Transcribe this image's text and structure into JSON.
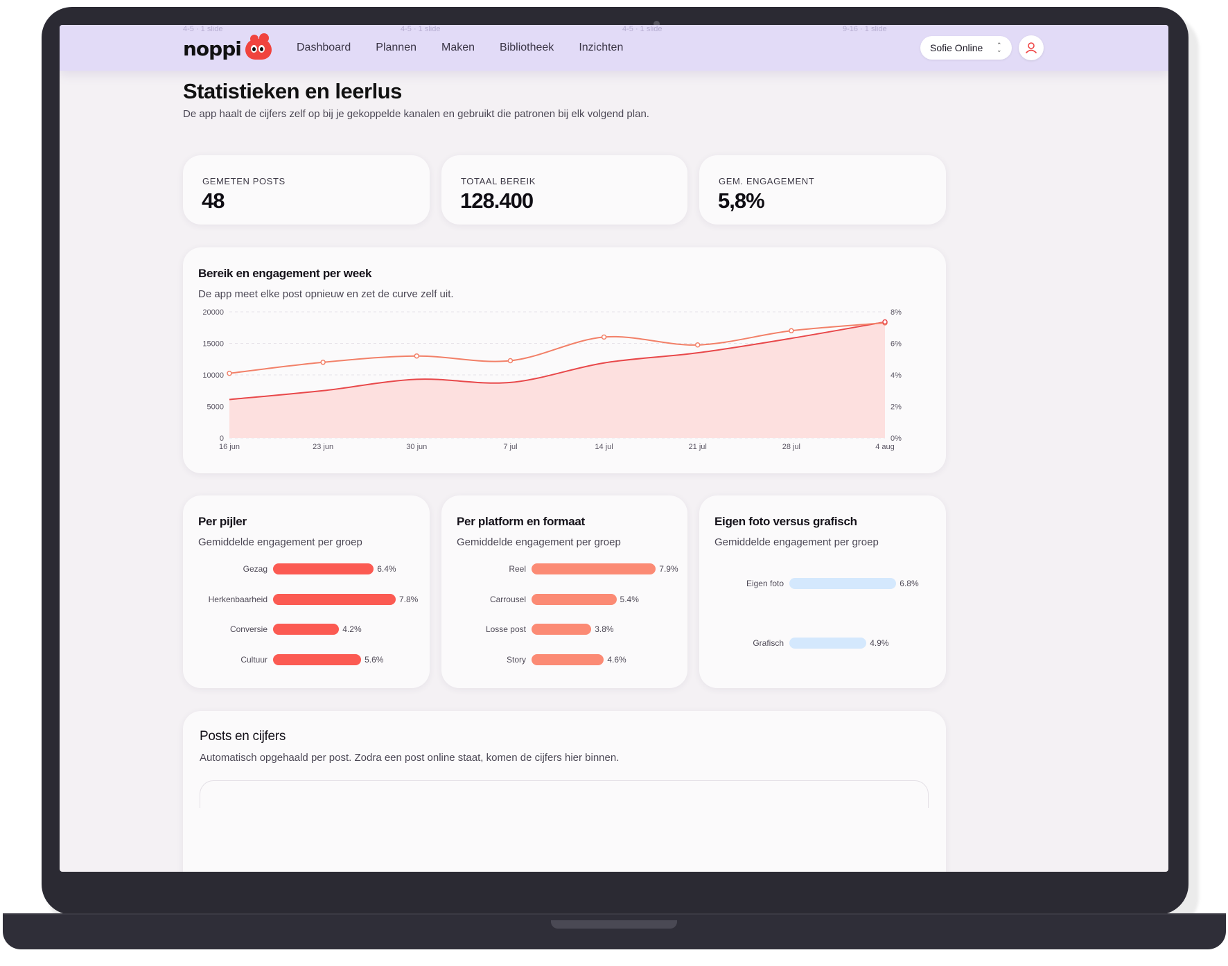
{
  "nav": {
    "ghost_items": [
      "4-5 · 1 slide",
      "4-5 · 1 slide",
      "4-5 · 1 slide",
      "9-16 · 1 slide"
    ],
    "logo": "noppi",
    "links": [
      "Dashboard",
      "Plannen",
      "Maken",
      "Bibliotheek",
      "Inzichten"
    ],
    "account": "Sofie Online"
  },
  "header": {
    "title": "Statistieken en leerlus",
    "subtitle": "De app haalt de cijfers zelf op bij je gekoppelde kanalen en gebruikt die patronen bij elk volgend plan."
  },
  "stats": [
    {
      "label": "GEMETEN POSTS",
      "value": "48"
    },
    {
      "label": "TOTAAL BEREIK",
      "value": "128.400"
    },
    {
      "label": "GEM. ENGAGEMENT",
      "value": "5,8%"
    }
  ],
  "weekly": {
    "title": "Bereik en engagement per week",
    "subtitle": "De app meet elke post opnieuw en zet de curve zelf uit."
  },
  "chart_data": [
    {
      "type": "area",
      "x": [
        "16 jun",
        "23 jun",
        "30 jun",
        "7 jul",
        "14 jul",
        "21 jul",
        "28 jul",
        "4 aug"
      ],
      "series": [
        {
          "values": [
            6100,
            7500,
            9300,
            8800,
            11900,
            13500,
            15800,
            18400
          ],
          "axis": "left",
          "color": "#e8484a"
        },
        {
          "values": [
            4.1,
            4.8,
            5.2,
            4.9,
            6.4,
            5.9,
            6.8,
            7.3
          ],
          "axis": "right",
          "color": "#f28068"
        }
      ],
      "ylim": [
        0,
        20000
      ],
      "yticks": [
        "0",
        "5000",
        "10000",
        "15000",
        "20000"
      ],
      "y2lim": [
        0,
        8
      ],
      "y2ticks": [
        "0%",
        "2%",
        "4%",
        "6%",
        "8%"
      ],
      "grid": true
    },
    {
      "type": "bar",
      "orientation": "horizontal",
      "title": "Per pijler",
      "subtitle": "Gemiddelde engagement per groep",
      "color": "#fb5a52",
      "categories": [
        "Gezag",
        "Herkenbaarheid",
        "Conversie",
        "Cultuur"
      ],
      "values": [
        6.4,
        7.8,
        4.2,
        5.6
      ],
      "labels": [
        "6.4%",
        "7.8%",
        "4.2%",
        "5.6%"
      ]
    },
    {
      "type": "bar",
      "orientation": "horizontal",
      "title": "Per platform en formaat",
      "subtitle": "Gemiddelde engagement per groep",
      "color": "#fb8a74",
      "categories": [
        "Reel",
        "Carrousel",
        "Losse post",
        "Story"
      ],
      "values": [
        7.9,
        5.4,
        3.8,
        4.6
      ],
      "labels": [
        "7.9%",
        "5.4%",
        "3.8%",
        "4.6%"
      ]
    },
    {
      "type": "bar",
      "orientation": "horizontal",
      "title": "Eigen foto versus grafisch",
      "subtitle": "Gemiddelde engagement per groep",
      "color": "#d4e8fd",
      "categories": [
        "Eigen foto",
        "Grafisch"
      ],
      "values": [
        6.8,
        4.9
      ],
      "labels": [
        "6.8%",
        "4.9%"
      ]
    }
  ],
  "posts": {
    "title": "Posts en cijfers",
    "subtitle": "Automatisch opgehaald per post. Zodra een post online staat, komen de cijfers hier binnen."
  },
  "icons": {
    "chevron": "chevron-up-down-icon",
    "avatar": "user-icon",
    "logo": "blob-mascot-icon"
  }
}
